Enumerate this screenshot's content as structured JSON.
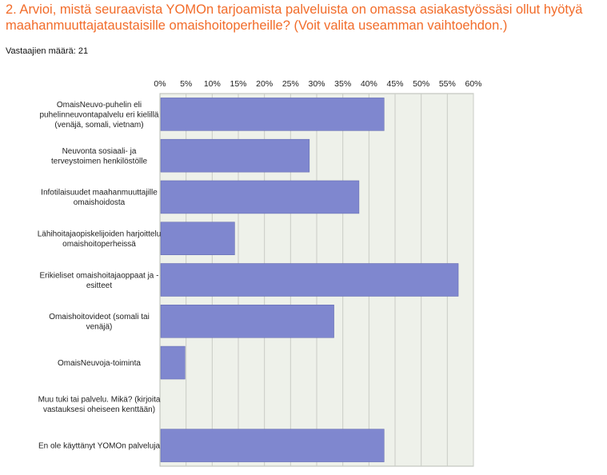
{
  "question": {
    "title": "2. Arvioi, mistä seuraavista YOMOn tarjoamista palveluista on omassa asiakastyössäsi ollut hyötyä maahanmuuttajataustaisille omaishoitoperheille? (Voit valita useamman vaihtoehdon.)",
    "respondents_label": "Vastaajien määrä: 21"
  },
  "colors": {
    "bar": "#7f87cf",
    "bar_edge": "#5f67ad",
    "plot_bg": "#eef1ea",
    "title": "#f26c2a"
  },
  "chart_data": {
    "type": "bar",
    "orientation": "horizontal",
    "categories": [
      [
        "OmaisNeuvo-puhelin eli",
        "puhelinneuvontapalvelu eri kielillä",
        "(venäjä, somali, vietnam)"
      ],
      [
        "Neuvonta sosiaali- ja",
        "terveystoimen henkilöstölle"
      ],
      [
        "Infotilaisuudet maahanmuuttajille",
        "omaishoidosta"
      ],
      [
        "Lähihoitajaopiskelijoiden harjoittelu",
        "omaishoitoperheissä"
      ],
      [
        "Erikieliset omaishoitajaoppaat ja -",
        "esitteet"
      ],
      [
        "Omaishoitovideot (somali tai",
        "venäjä)"
      ],
      [
        "OmaisNeuvoja-toiminta"
      ],
      [
        "Muu tuki tai palvelu. Mikä? (kirjoita",
        "vastauksesi oheiseen kenttään)"
      ],
      [
        "En ole käyttänyt YOMOn palveluja"
      ]
    ],
    "values": [
      42.9,
      28.6,
      38.1,
      14.3,
      57.1,
      33.3,
      4.8,
      0,
      42.9
    ],
    "xlim": [
      0,
      60
    ],
    "ticks": [
      "0%",
      "5%",
      "10%",
      "15%",
      "20%",
      "25%",
      "30%",
      "35%",
      "40%",
      "45%",
      "50%",
      "55%",
      "60%"
    ],
    "tick_values": [
      0,
      5,
      10,
      15,
      20,
      25,
      30,
      35,
      40,
      45,
      50,
      55,
      60
    ],
    "grid": true
  }
}
